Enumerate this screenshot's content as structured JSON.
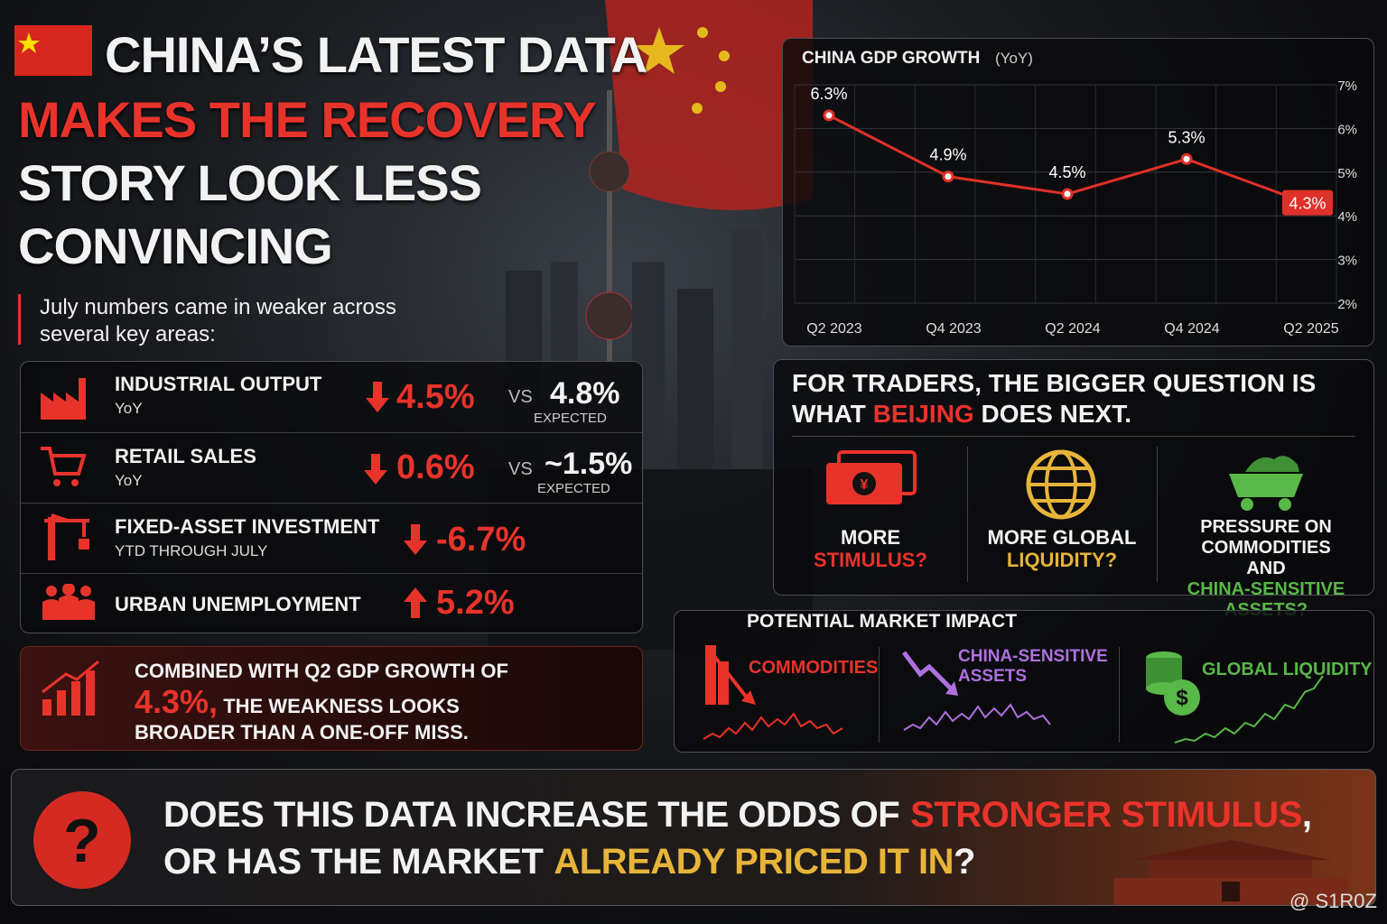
{
  "header": {
    "title_lines": [
      "CHINA’S LATEST DATA",
      "MAKES THE RECOVERY",
      "STORY LOOK LESS",
      "CONVINCING"
    ],
    "intro": "July numbers came in weaker across several key areas:"
  },
  "indicators": [
    {
      "name": "INDUSTRIAL OUTPUT",
      "sub": "YoY",
      "actual": "4.5%",
      "vs": "VS",
      "expected": "4.8%",
      "expected_label": "EXPECTED"
    },
    {
      "name": "RETAIL SALES",
      "sub": "YoY",
      "actual": "0.6%",
      "vs": "VS",
      "expected": "~1.5%",
      "expected_label": "EXPECTED"
    },
    {
      "name": "FIXED-ASSET INVESTMENT",
      "sub": "YTD THROUGH JULY",
      "actual": "-6.7%"
    },
    {
      "name": "URBAN UNEMPLOYMENT",
      "actual": "5.2%"
    }
  ],
  "summary": {
    "line1": "COMBINED WITH Q2 GDP GROWTH OF",
    "highlight": "4.3%,",
    "line2": "THE WEAKNESS LOOKS",
    "line3": "BROADER THAN A ONE-OFF MISS."
  },
  "chart_data": {
    "type": "line",
    "title": "CHINA GDP GROWTH",
    "subtitle": "(YoY)",
    "categories": [
      "Q2 2023",
      "Q4 2023",
      "Q2 2024",
      "Q4 2024",
      "Q2 2025"
    ],
    "values": [
      6.3,
      4.9,
      4.5,
      5.3,
      4.3
    ],
    "value_labels": [
      "6.3%",
      "4.9%",
      "4.5%",
      "5.3%",
      "4.3%"
    ],
    "color": "#e0302a",
    "ylim": [
      2,
      7
    ],
    "yticks": [
      {
        "value": 2,
        "label": "2%"
      },
      {
        "value": 3,
        "label": "3%"
      },
      {
        "value": 4,
        "label": "4%"
      },
      {
        "value": 5,
        "label": "5%"
      },
      {
        "value": 6,
        "label": "6%"
      },
      {
        "value": 7,
        "label": "7%"
      }
    ],
    "grid": true
  },
  "traders": {
    "line1": "FOR TRADERS, THE BIGGER QUESTION IS",
    "line2": [
      "WHAT",
      "BEIJING",
      "DOES NEXT."
    ],
    "questions": [
      {
        "top": "MORE",
        "bottom": "STIMULUS?"
      },
      {
        "top": "MORE GLOBAL",
        "bottom": "LIQUIDITY?"
      },
      {
        "top": "PRESSURE ON COMMODITIES AND",
        "bottom": "CHINA-SENSITIVE ASSETS?"
      }
    ]
  },
  "impact": {
    "title": "POTENTIAL MARKET IMPACT",
    "items": [
      "COMMODITIES",
      "CHINA-SENSITIVE ASSETS",
      "GLOBAL LIQUIDITY"
    ]
  },
  "footer": {
    "icon": "?",
    "line1": [
      "DOES THIS DATA INCREASE THE ODDS OF",
      "STRONGER STIMULUS",
      ","
    ],
    "line2": [
      "OR HAS THE MARKET",
      "ALREADY PRICED IT IN",
      "?"
    ],
    "watermark": "@ S1R0Z"
  }
}
